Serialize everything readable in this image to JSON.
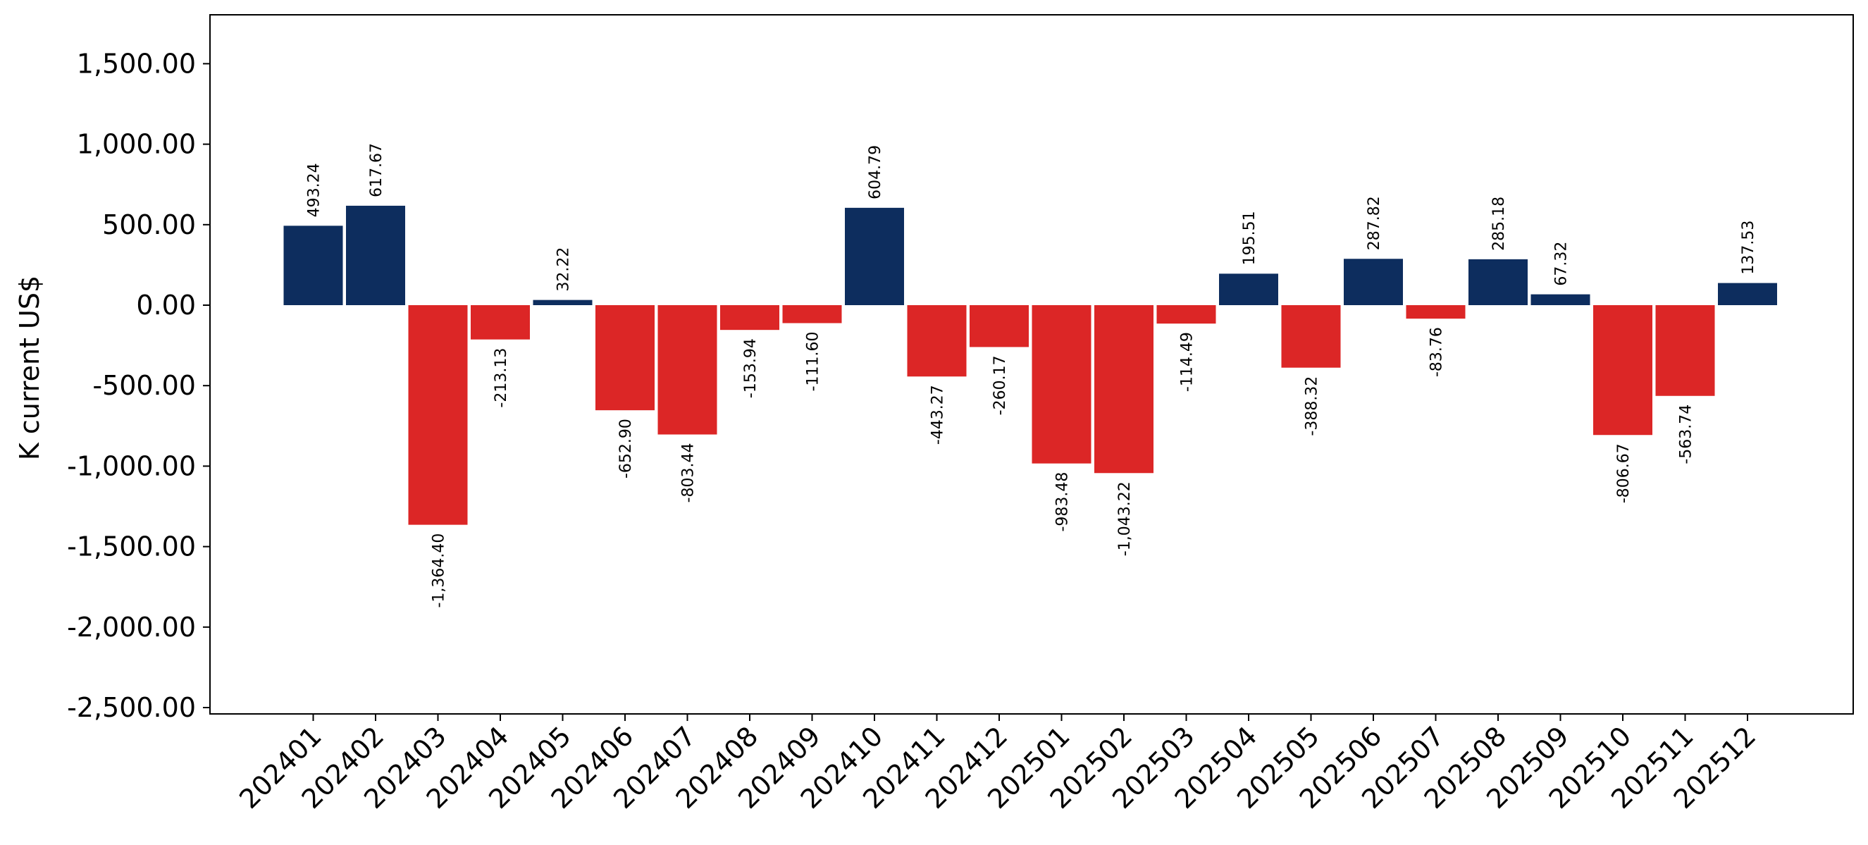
{
  "chart_data": {
    "type": "bar",
    "title": "",
    "xlabel": "",
    "ylabel": "K current US$",
    "ylim": [
      -2550,
      1800
    ],
    "yticks": [
      1500,
      1000,
      500,
      0,
      -500,
      -1000,
      -1500,
      -2000,
      -2500
    ],
    "ytick_labels": [
      "1,500.00",
      "1,000.00",
      "500.00",
      "0.00",
      "-500.00",
      "-1,000.00",
      "-1,500.00",
      "-2,000.00",
      "-2,500.00"
    ],
    "grid": false,
    "legend": "none",
    "colors": {
      "positive": "#0d2d5e",
      "negative": "#dc2626"
    },
    "categories": [
      "202401",
      "202402",
      "202403",
      "202404",
      "202405",
      "202406",
      "202407",
      "202408",
      "202409",
      "202410",
      "202411",
      "202412",
      "202501",
      "202502",
      "202503",
      "202504",
      "202505",
      "202506",
      "202507",
      "202508",
      "202509",
      "202510",
      "202511",
      "202512"
    ],
    "values": [
      493.24,
      617.67,
      -1364.4,
      -213.13,
      32.22,
      -652.9,
      -803.44,
      -153.94,
      -111.6,
      604.79,
      -443.27,
      -260.17,
      -983.48,
      -1043.22,
      -114.49,
      195.51,
      -388.32,
      287.82,
      -83.76,
      285.18,
      67.32,
      -806.67,
      -563.74,
      137.53
    ],
    "value_labels": [
      "493.24",
      "617.67",
      "-1,364.40",
      "-213.13",
      "32.22",
      "-652.90",
      "-803.44",
      "-153.94",
      "-111.60",
      "604.79",
      "-443.27",
      "-260.17",
      "-983.48",
      "-1,043.22",
      "-114.49",
      "195.51",
      "-388.32",
      "287.82",
      "-83.76",
      "285.18",
      "67.32",
      "-806.67",
      "-563.74",
      "137.53"
    ]
  }
}
